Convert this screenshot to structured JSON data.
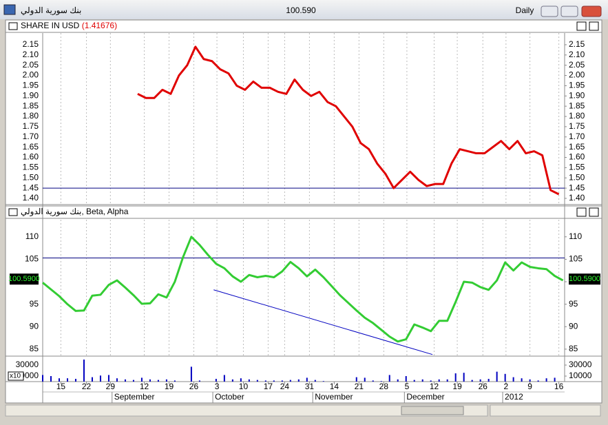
{
  "window": {
    "title": "بنك سورية الدولي",
    "price": "100.590",
    "period": "Daily"
  },
  "x_axis": {
    "xlim": [
      0,
      63.2
    ],
    "xticks": [
      {
        "value": 2.2,
        "label": "15"
      },
      {
        "value": 5.3,
        "label": "22"
      },
      {
        "value": 8.2,
        "label": "29"
      },
      {
        "value": 12.3,
        "label": "12"
      },
      {
        "value": 15.3,
        "label": "19"
      },
      {
        "value": 18.3,
        "label": "26"
      },
      {
        "value": 21.1,
        "label": "3"
      },
      {
        "value": 24.3,
        "label": "10"
      },
      {
        "value": 27.3,
        "label": "17"
      },
      {
        "value": 29.3,
        "label": "24"
      },
      {
        "value": 32.3,
        "label": "31"
      },
      {
        "value": 35.3,
        "label": "14"
      },
      {
        "value": 38.3,
        "label": "21"
      },
      {
        "value": 41.3,
        "label": "28"
      },
      {
        "value": 44.1,
        "label": "5"
      },
      {
        "value": 47.4,
        "label": "12"
      },
      {
        "value": 50.2,
        "label": "19"
      },
      {
        "value": 53.3,
        "label": "26"
      },
      {
        "value": 56.1,
        "label": "2"
      },
      {
        "value": 59,
        "label": "9"
      },
      {
        "value": 62.5,
        "label": "16"
      }
    ],
    "months": [
      {
        "value": 8.4,
        "label": "September"
      },
      {
        "value": 20.6,
        "label": "October"
      },
      {
        "value": 32.7,
        "label": "November"
      },
      {
        "value": 43.8,
        "label": "December"
      },
      {
        "value": 55.7,
        "label": "2012"
      }
    ]
  },
  "chart_data": [
    {
      "type": "line",
      "title": "SHARE IN USD",
      "title_value": "(1.41676)",
      "x": [
        11.5,
        12.5,
        13.5,
        14.5,
        15.5,
        16.5,
        17.5,
        18.5,
        19.5,
        20.5,
        21.5,
        22.5,
        23.5,
        24.5,
        25.5,
        26.5,
        27.5,
        28.5,
        29.5,
        30.5,
        31.5,
        32.5,
        33.5,
        34.5,
        35.5,
        36.5,
        37.5,
        38.5,
        39.5,
        40.5,
        41.5,
        42.5,
        43.5,
        44.5,
        45.5,
        46.5,
        47.5,
        48.5,
        49.5,
        50.5,
        51.5,
        52.5,
        53.5,
        54.5,
        55.5,
        56.5,
        57.5,
        58.5,
        59.5,
        60.5,
        61.5,
        62.5
      ],
      "series": [
        {
          "color": "#e00000",
          "values": [
            1.91,
            1.89,
            1.89,
            1.93,
            1.91,
            2.0,
            2.05,
            2.14,
            2.08,
            2.07,
            2.03,
            2.01,
            1.95,
            1.93,
            1.97,
            1.94,
            1.94,
            1.92,
            1.91,
            1.98,
            1.93,
            1.9,
            1.92,
            1.87,
            1.85,
            1.8,
            1.75,
            1.67,
            1.64,
            1.57,
            1.52,
            1.45,
            1.49,
            1.53,
            1.49,
            1.46,
            1.47,
            1.47,
            1.57,
            1.64,
            1.63,
            1.62,
            1.62,
            1.65,
            1.68,
            1.64,
            1.68,
            1.62,
            1.63,
            1.61,
            1.44,
            1.42
          ]
        }
      ],
      "ylim": [
        1.373,
        2.207
      ],
      "yticks": [
        {
          "value": 1.4,
          "label": "1.40"
        },
        1.45,
        {
          "value": 1.5,
          "label": "1.50"
        },
        1.55,
        {
          "value": 1.6,
          "label": "1.60"
        },
        1.65,
        {
          "value": 1.7,
          "label": "1.70"
        },
        1.75,
        {
          "value": 1.8,
          "label": "1.80"
        },
        1.85,
        {
          "value": 1.9,
          "label": "1.90"
        },
        1.95,
        {
          "value": 2.0,
          "label": "2.00"
        },
        2.05,
        {
          "value": 2.1,
          "label": "2.10"
        },
        2.15
      ],
      "hline": {
        "value": 1.45,
        "color": "#000080"
      }
    },
    {
      "type": "line",
      "title": "بنك سورية الدولي, Beta, Alpha",
      "x": [
        0,
        1,
        2,
        3,
        4,
        5,
        6,
        7,
        8,
        9,
        10,
        11,
        12,
        13,
        14,
        15,
        16,
        17,
        18,
        19,
        20,
        21,
        22,
        23,
        24,
        25,
        26,
        27,
        28,
        29,
        30,
        31,
        32,
        33,
        34,
        35,
        36,
        37,
        38,
        39,
        40,
        41,
        42,
        43,
        44,
        45,
        46,
        47,
        48,
        49,
        50,
        51,
        52,
        53,
        54,
        55,
        56,
        57,
        58,
        59,
        60,
        61,
        62,
        63
      ],
      "series": [
        {
          "color": "#33cc33",
          "values": [
            99.8,
            98.3,
            96.8,
            95,
            93.5,
            93.6,
            96.9,
            97.1,
            99.3,
            100.3,
            98.7,
            97,
            95.1,
            95.2,
            97.2,
            96.5,
            100,
            105.5,
            110,
            108.2,
            106,
            104,
            103,
            101.2,
            100,
            101.5,
            101,
            101.3,
            101,
            102.3,
            104.4,
            103,
            101.2,
            102.7,
            101,
            99,
            97,
            95.3,
            93.6,
            92,
            90.8,
            89.3,
            87.8,
            86.7,
            87.2,
            90.5,
            89.8,
            89,
            91.3,
            91.3,
            95.5,
            100,
            99.8,
            98.8,
            98.2,
            100.3,
            104.3,
            102.5,
            104.3,
            103.3,
            103,
            102.8,
            101.3,
            100.3
          ]
        }
      ],
      "ylim": [
        83.6,
        113.8
      ],
      "yticks": [
        85,
        90,
        95,
        100,
        105,
        110
      ],
      "hline": {
        "value": 105.3,
        "color": "#000080"
      },
      "trendline": {
        "x": [
          20.7,
          47.2
        ],
        "values": [
          98.2,
          83.8
        ],
        "color": "#0000c0"
      },
      "value_box": {
        "value": 100.59,
        "label": "100.5900"
      }
    },
    {
      "type": "bar",
      "multiplier": "x10",
      "x": [
        0,
        1,
        2,
        3,
        4,
        5,
        6,
        7,
        8,
        9,
        10,
        11,
        12,
        13,
        14,
        15,
        16,
        17,
        18,
        19,
        20,
        21,
        22,
        23,
        24,
        25,
        26,
        27,
        28,
        29,
        30,
        31,
        32,
        33,
        34,
        35,
        36,
        37,
        38,
        39,
        40,
        41,
        42,
        43,
        44,
        45,
        46,
        47,
        48,
        49,
        50,
        51,
        52,
        53,
        54,
        55,
        56,
        57,
        58,
        59,
        60,
        61,
        62,
        63
      ],
      "values": [
        12000,
        10000,
        6000,
        6000,
        5000,
        40000,
        8000,
        11000,
        12000,
        6000,
        4000,
        3000,
        7000,
        4000,
        3000,
        4000,
        2000,
        0,
        27000,
        2000,
        0,
        5000,
        12000,
        4000,
        6000,
        4000,
        3000,
        2000,
        2000,
        2000,
        3000,
        4000,
        7000,
        3000,
        1000,
        0,
        0,
        0,
        8000,
        7000,
        2000,
        1000,
        12000,
        4000,
        10000,
        3000,
        4000,
        2000,
        4000,
        4000,
        15000,
        16000,
        3000,
        4000,
        5000,
        18000,
        14000,
        8000,
        6000,
        4000,
        2000,
        6000,
        7000,
        0
      ],
      "color": "#0000c0",
      "ylim": [
        0,
        45000
      ],
      "yticks": [
        10000,
        30000
      ]
    }
  ]
}
